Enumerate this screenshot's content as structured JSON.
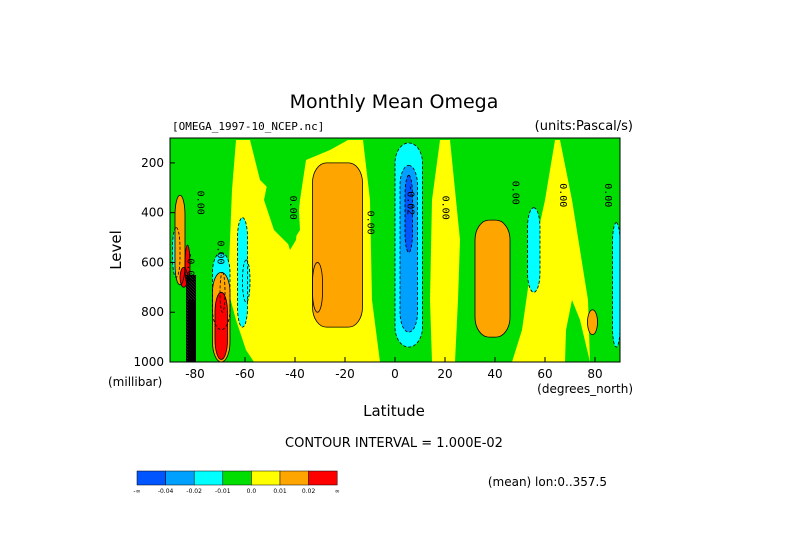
{
  "chart_data": {
    "type": "heatmap",
    "title": "Monthly Mean Omega",
    "dataset_label": "[OMEGA_1997-10_NCEP.nc]",
    "units_label": "(units:Pascal/s)",
    "xlabel": "Latitude",
    "x_unit_label": "(degrees_north)",
    "ylabel": "Level",
    "y_unit_label": "(millibar)",
    "xlim": [
      -90,
      90
    ],
    "ylim": [
      1000,
      100
    ],
    "x_ticks": [
      -80,
      -60,
      -40,
      -20,
      0,
      20,
      40,
      60,
      80
    ],
    "x_tick_labels": [
      "-80",
      "-60",
      "-40",
      "-20",
      "0",
      "20",
      "40",
      "60",
      "80"
    ],
    "y_ticks": [
      200,
      400,
      600,
      800,
      1000
    ],
    "y_tick_labels": [
      "200",
      "400",
      "600",
      "800",
      "1000"
    ],
    "contour_interval_text": "CONTOUR INTERVAL = 1.000E-02",
    "mean_text": "(mean) lon:0..357.5",
    "contour_labels": [
      {
        "text": "0.00",
        "lat": -79,
        "level": 360
      },
      {
        "text": "0.00",
        "lat": -71,
        "level": 560
      },
      {
        "text": "-0.02",
        "lat": -83,
        "level": 620
      },
      {
        "text": "0.00",
        "lat": -42,
        "level": 380
      },
      {
        "text": "0.00",
        "lat": -11,
        "level": 440
      },
      {
        "text": "-0.02",
        "lat": 5,
        "level": 350
      },
      {
        "text": "0.00",
        "lat": 19,
        "level": 380
      },
      {
        "text": "0.00",
        "lat": 47,
        "level": 320
      },
      {
        "text": "0.00",
        "lat": 66,
        "level": 330
      },
      {
        "text": "0.00",
        "lat": 84,
        "level": 330
      }
    ],
    "colorbar": {
      "colors": [
        "#0055ff",
        "#00a0ff",
        "#00ffff",
        "#00dd00",
        "#ffff00",
        "#ffa500",
        "#ff0000"
      ],
      "tick_labels": [
        "-∞",
        "-0.04",
        "-0.02",
        "-0.01",
        "0.0",
        "0.01",
        "0.02",
        "∞"
      ]
    },
    "regions": [
      {
        "value": -0.02,
        "color": "#00ffff",
        "lat": [
          -73,
          -66
        ],
        "level": [
          560,
          870
        ]
      },
      {
        "value": -0.01,
        "color": "#00a0ff",
        "lat": [
          -70,
          -68
        ],
        "level": [
          640,
          800
        ]
      },
      {
        "value": -0.02,
        "color": "#00ffff",
        "lat": [
          -63,
          -59
        ],
        "level": [
          420,
          860
        ]
      },
      {
        "value": -0.02,
        "color": "#00ffff",
        "lat": [
          -61,
          -58
        ],
        "level": [
          590,
          760
        ]
      },
      {
        "value": -0.02,
        "color": "#00ffff",
        "lat": [
          -89,
          -86
        ],
        "level": [
          460,
          660
        ]
      },
      {
        "value": 0.01,
        "color": "#ffa500",
        "lat": [
          -88,
          -84
        ],
        "level": [
          330,
          690
        ]
      },
      {
        "value": 0.02,
        "color": "#ff0000",
        "lat": [
          -84,
          -82
        ],
        "level": [
          530,
          690
        ]
      },
      {
        "value": 0.02,
        "color": "#ff0000",
        "lat": [
          -86,
          -83
        ],
        "level": [
          620,
          700
        ]
      },
      {
        "value": 0.01,
        "color": "#ffa500",
        "lat": [
          -73,
          -66
        ],
        "level": [
          640,
          1000
        ]
      },
      {
        "value": 0.02,
        "color": "#ff0000",
        "lat": [
          -72,
          -67
        ],
        "level": [
          720,
          990
        ]
      },
      {
        "value": 0.01,
        "color": "#ffa500",
        "lat": [
          -33,
          -13
        ],
        "level": [
          200,
          860
        ]
      },
      {
        "value": 0.01,
        "color": "#ffa500",
        "lat": [
          -33,
          -29
        ],
        "level": [
          600,
          800
        ]
      },
      {
        "value": -0.01,
        "color": "#00ffff",
        "lat": [
          0,
          11
        ],
        "level": [
          120,
          940
        ]
      },
      {
        "value": -0.02,
        "color": "#00a0ff",
        "lat": [
          2,
          9
        ],
        "level": [
          210,
          880
        ]
      },
      {
        "value": -0.03,
        "color": "#0055ff",
        "lat": [
          4,
          7
        ],
        "level": [
          250,
          560
        ]
      },
      {
        "value": 0.01,
        "color": "#ffa500",
        "lat": [
          32,
          46
        ],
        "level": [
          430,
          900
        ]
      },
      {
        "value": -0.02,
        "color": "#00ffff",
        "lat": [
          53,
          58
        ],
        "level": [
          380,
          720
        ]
      },
      {
        "value": 0.01,
        "color": "#ffa500",
        "lat": [
          77,
          81
        ],
        "level": [
          790,
          890
        ]
      },
      {
        "value": -0.02,
        "color": "#00ffff",
        "lat": [
          87,
          90
        ],
        "level": [
          440,
          940
        ]
      }
    ]
  }
}
